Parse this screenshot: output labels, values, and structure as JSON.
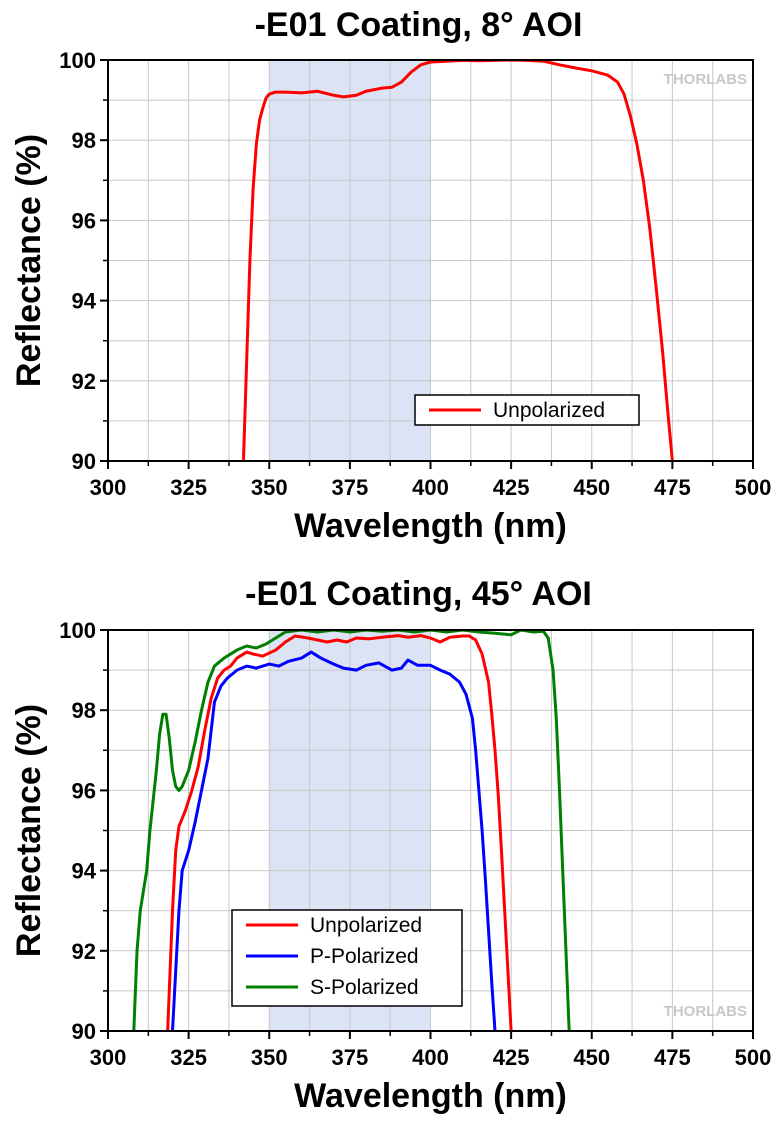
{
  "chart_data": [
    {
      "type": "line",
      "title": "-E01 Coating, 8° AOI",
      "xlabel": "Wavelength (nm)",
      "ylabel": "Reflectance (%)",
      "xlim": [
        300,
        500
      ],
      "ylim": [
        90,
        100
      ],
      "xticks": [
        "300",
        "325",
        "350",
        "375",
        "400",
        "425",
        "450",
        "475",
        "500"
      ],
      "yticks": [
        "90",
        "92",
        "94",
        "96",
        "98",
        "100"
      ],
      "grid": true,
      "shaded_band": [
        350,
        400
      ],
      "shaded_color": "#dbe3f4",
      "legend": "bottom-right",
      "logo": "THORLABS",
      "series": [
        {
          "name": "Unpolarized",
          "color": "#ff0000",
          "points": [
            [
              342,
              90.0
            ],
            [
              343,
              92.5
            ],
            [
              344,
              95.0
            ],
            [
              345,
              96.8
            ],
            [
              346,
              97.9
            ],
            [
              347,
              98.5
            ],
            [
              348,
              98.8
            ],
            [
              349,
              99.05
            ],
            [
              350,
              99.15
            ],
            [
              352,
              99.2
            ],
            [
              355,
              99.2
            ],
            [
              360,
              99.18
            ],
            [
              365,
              99.22
            ],
            [
              370,
              99.12
            ],
            [
              373,
              99.08
            ],
            [
              377,
              99.12
            ],
            [
              380,
              99.22
            ],
            [
              385,
              99.3
            ],
            [
              388,
              99.32
            ],
            [
              391,
              99.45
            ],
            [
              394,
              99.7
            ],
            [
              397,
              99.88
            ],
            [
              400,
              99.95
            ],
            [
              405,
              99.97
            ],
            [
              410,
              99.99
            ],
            [
              415,
              99.98
            ],
            [
              420,
              99.99
            ],
            [
              425,
              100.0
            ],
            [
              430,
              99.99
            ],
            [
              435,
              99.97
            ],
            [
              440,
              99.88
            ],
            [
              445,
              99.8
            ],
            [
              450,
              99.73
            ],
            [
              455,
              99.62
            ],
            [
              458,
              99.45
            ],
            [
              460,
              99.15
            ],
            [
              462,
              98.6
            ],
            [
              464,
              97.9
            ],
            [
              466,
              97.0
            ],
            [
              468,
              95.8
            ],
            [
              470,
              94.3
            ],
            [
              472,
              92.7
            ],
            [
              473.5,
              91.3
            ],
            [
              475,
              90.0
            ]
          ]
        }
      ]
    },
    {
      "type": "line",
      "title": "-E01 Coating, 45° AOI",
      "xlabel": "Wavelength (nm)",
      "ylabel": "Reflectance (%)",
      "xlim": [
        300,
        500
      ],
      "ylim": [
        90,
        100
      ],
      "xticks": [
        "300",
        "325",
        "350",
        "375",
        "400",
        "425",
        "450",
        "475",
        "500"
      ],
      "yticks": [
        "90",
        "92",
        "94",
        "96",
        "98",
        "100"
      ],
      "grid": true,
      "shaded_band": [
        350,
        400
      ],
      "shaded_color": "#dbe3f4",
      "legend": "bottom-left",
      "logo": "THORLABS",
      "series": [
        {
          "name": "Unpolarized",
          "color": "#ff0000",
          "points": [
            [
              318.5,
              90.0
            ],
            [
              319,
              91.0
            ],
            [
              320,
              93.0
            ],
            [
              321,
              94.5
            ],
            [
              322,
              95.1
            ],
            [
              324,
              95.5
            ],
            [
              326,
              96.0
            ],
            [
              328,
              96.6
            ],
            [
              330,
              97.5
            ],
            [
              332,
              98.3
            ],
            [
              334,
              98.8
            ],
            [
              336,
              99.0
            ],
            [
              338,
              99.1
            ],
            [
              340,
              99.3
            ],
            [
              343,
              99.45
            ],
            [
              345,
              99.4
            ],
            [
              348,
              99.35
            ],
            [
              352,
              99.5
            ],
            [
              355,
              99.7
            ],
            [
              358,
              99.85
            ],
            [
              362,
              99.8
            ],
            [
              365,
              99.75
            ],
            [
              368,
              99.7
            ],
            [
              371,
              99.75
            ],
            [
              374,
              99.7
            ],
            [
              377,
              99.8
            ],
            [
              381,
              99.78
            ],
            [
              385,
              99.82
            ],
            [
              390,
              99.86
            ],
            [
              393,
              99.82
            ],
            [
              397,
              99.86
            ],
            [
              400,
              99.8
            ],
            [
              403,
              99.7
            ],
            [
              406,
              99.82
            ],
            [
              410,
              99.85
            ],
            [
              412,
              99.85
            ],
            [
              414,
              99.75
            ],
            [
              416,
              99.4
            ],
            [
              418,
              98.7
            ],
            [
              419,
              97.9
            ],
            [
              420,
              97.0
            ],
            [
              421,
              95.9
            ],
            [
              422,
              94.5
            ],
            [
              423,
              93.0
            ],
            [
              424,
              91.5
            ],
            [
              425,
              90.0
            ]
          ]
        },
        {
          "name": "P-Polarized",
          "color": "#0000ff",
          "points": [
            [
              320,
              90.0
            ],
            [
              321,
              91.5
            ],
            [
              322,
              93.0
            ],
            [
              323,
              94.0
            ],
            [
              325,
              94.5
            ],
            [
              327,
              95.2
            ],
            [
              329,
              96.0
            ],
            [
              331,
              96.8
            ],
            [
              333,
              98.2
            ],
            [
              335,
              98.6
            ],
            [
              337,
              98.8
            ],
            [
              340,
              99.0
            ],
            [
              343,
              99.1
            ],
            [
              346,
              99.05
            ],
            [
              350,
              99.15
            ],
            [
              353,
              99.1
            ],
            [
              356,
              99.22
            ],
            [
              360,
              99.3
            ],
            [
              363,
              99.45
            ],
            [
              366,
              99.3
            ],
            [
              370,
              99.15
            ],
            [
              373,
              99.05
            ],
            [
              377,
              99.0
            ],
            [
              380,
              99.12
            ],
            [
              384,
              99.18
            ],
            [
              388,
              99.0
            ],
            [
              391,
              99.05
            ],
            [
              393,
              99.25
            ],
            [
              396,
              99.12
            ],
            [
              400,
              99.12
            ],
            [
              403,
              99.0
            ],
            [
              406,
              98.9
            ],
            [
              409,
              98.7
            ],
            [
              411,
              98.4
            ],
            [
              413,
              97.8
            ],
            [
              414,
              97.0
            ],
            [
              415,
              96.0
            ],
            [
              416,
              95.0
            ],
            [
              417,
              93.8
            ],
            [
              418,
              92.5
            ],
            [
              419,
              91.2
            ],
            [
              420,
              90.0
            ]
          ]
        },
        {
          "name": "S-Polarized",
          "color": "#008000",
          "points": [
            [
              308,
              90.0
            ],
            [
              309,
              92.0
            ],
            [
              310,
              93.0
            ],
            [
              312,
              94.0
            ],
            [
              313,
              95.0
            ],
            [
              315,
              96.5
            ],
            [
              316,
              97.4
            ],
            [
              317,
              97.9
            ],
            [
              318,
              97.9
            ],
            [
              319,
              97.3
            ],
            [
              320,
              96.5
            ],
            [
              321,
              96.1
            ],
            [
              322,
              96.0
            ],
            [
              323,
              96.1
            ],
            [
              325,
              96.5
            ],
            [
              327,
              97.2
            ],
            [
              329,
              98.0
            ],
            [
              331,
              98.7
            ],
            [
              333,
              99.1
            ],
            [
              336,
              99.3
            ],
            [
              340,
              99.5
            ],
            [
              343,
              99.6
            ],
            [
              346,
              99.55
            ],
            [
              349,
              99.65
            ],
            [
              352,
              99.8
            ],
            [
              355,
              99.95
            ],
            [
              360,
              100.0
            ],
            [
              365,
              99.95
            ],
            [
              370,
              100.0
            ],
            [
              375,
              99.95
            ],
            [
              380,
              100.0
            ],
            [
              385,
              99.97
            ],
            [
              390,
              100.0
            ],
            [
              395,
              99.95
            ],
            [
              400,
              100.0
            ],
            [
              405,
              99.95
            ],
            [
              410,
              100.0
            ],
            [
              415,
              99.95
            ],
            [
              420,
              99.92
            ],
            [
              425,
              99.88
            ],
            [
              428,
              100.0
            ],
            [
              432,
              99.95
            ],
            [
              435,
              99.97
            ],
            [
              436.5,
              99.8
            ],
            [
              438,
              99.0
            ],
            [
              439,
              97.8
            ],
            [
              440,
              96.0
            ],
            [
              441,
              94.0
            ],
            [
              442,
              92.0
            ],
            [
              443,
              90.0
            ]
          ]
        }
      ]
    }
  ]
}
